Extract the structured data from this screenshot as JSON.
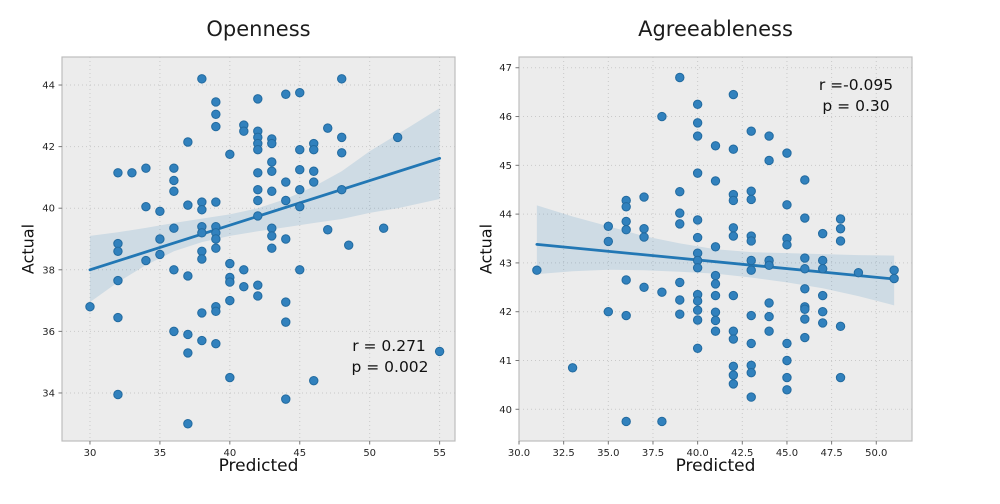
{
  "style": {
    "axes_background": "#ececec",
    "grid_color": "#c9c9c9",
    "frame_color": "#bdbdbd",
    "tick_color": "#777777",
    "tick_label_color": "#262626",
    "point_fill": "#3181bd",
    "point_edge": "#226a9f",
    "line_color": "#2277b4",
    "band_fill": "rgba(49,130,189,0.16)"
  },
  "chart_data": [
    {
      "type": "scatter",
      "title": "Openness",
      "xlabel": "Predicted",
      "ylabel": "Actual",
      "xlim": [
        28.0,
        56.1
      ],
      "ylim": [
        32.44,
        44.91
      ],
      "grid": true,
      "xticks": {
        "values": [
          30,
          35,
          40,
          45,
          50,
          55
        ],
        "labels": [
          "30",
          "35",
          "40",
          "45",
          "50",
          "55"
        ]
      },
      "yticks": {
        "values": [
          34,
          36,
          38,
          40,
          42,
          44
        ],
        "labels": [
          "34",
          "36",
          "38",
          "40",
          "42",
          "44"
        ]
      },
      "regression_line": {
        "x1": 30,
        "y1": 38.0,
        "x2": 55,
        "y2": 41.62
      },
      "confidence_band": {
        "x": [
          30,
          32,
          34,
          36,
          38,
          40,
          42,
          44,
          46,
          48,
          50,
          52,
          55
        ],
        "upper": [
          39.1,
          39.22,
          39.36,
          39.52,
          39.66,
          39.8,
          40.0,
          40.3,
          40.7,
          41.2,
          41.85,
          42.4,
          43.25
        ],
        "lower": [
          36.95,
          37.6,
          38.15,
          38.6,
          38.9,
          39.1,
          39.25,
          39.38,
          39.52,
          39.65,
          39.85,
          40.0,
          40.3
        ]
      },
      "annotations": [
        {
          "text": "r = 0.271",
          "x": 51.3,
          "y": 35.52
        },
        {
          "text": "p = 0.002",
          "x": 51.4,
          "y": 34.85
        }
      ],
      "points": [
        [
          30,
          36.8
        ],
        [
          32,
          41.15
        ],
        [
          32,
          38.85
        ],
        [
          32,
          38.6
        ],
        [
          32,
          37.65
        ],
        [
          32,
          36.45
        ],
        [
          32,
          33.95
        ],
        [
          33,
          41.15
        ],
        [
          34,
          41.3
        ],
        [
          34,
          40.05
        ],
        [
          34,
          38.3
        ],
        [
          35,
          39.9
        ],
        [
          35,
          39.0
        ],
        [
          35,
          38.5
        ],
        [
          36,
          41.3
        ],
        [
          36,
          40.9
        ],
        [
          36,
          40.55
        ],
        [
          36,
          39.35
        ],
        [
          36,
          38.0
        ],
        [
          36,
          36.0
        ],
        [
          37,
          42.15
        ],
        [
          37,
          40.1
        ],
        [
          37,
          37.8
        ],
        [
          37,
          35.9
        ],
        [
          37,
          35.3
        ],
        [
          37,
          33.0
        ],
        [
          38,
          44.2
        ],
        [
          38,
          40.2
        ],
        [
          38,
          39.95
        ],
        [
          38,
          39.4
        ],
        [
          38,
          39.2
        ],
        [
          38,
          38.6
        ],
        [
          38,
          38.35
        ],
        [
          38,
          36.6
        ],
        [
          38,
          35.7
        ],
        [
          39,
          43.45
        ],
        [
          39,
          43.05
        ],
        [
          39,
          42.65
        ],
        [
          39,
          40.2
        ],
        [
          39,
          39.4
        ],
        [
          39,
          39.2
        ],
        [
          39,
          39.0
        ],
        [
          39,
          38.7
        ],
        [
          39,
          36.8
        ],
        [
          39,
          36.65
        ],
        [
          39,
          35.6
        ],
        [
          40,
          41.75
        ],
        [
          40,
          38.2
        ],
        [
          40,
          37.75
        ],
        [
          40,
          37.6
        ],
        [
          40,
          37.0
        ],
        [
          40,
          34.5
        ],
        [
          41,
          42.7
        ],
        [
          41,
          42.5
        ],
        [
          41,
          38.0
        ],
        [
          41,
          37.45
        ],
        [
          42,
          43.55
        ],
        [
          42,
          42.5
        ],
        [
          42,
          42.3
        ],
        [
          42,
          42.1
        ],
        [
          42,
          41.9
        ],
        [
          42,
          41.15
        ],
        [
          42,
          40.6
        ],
        [
          42,
          40.25
        ],
        [
          42,
          39.75
        ],
        [
          42,
          37.5
        ],
        [
          42,
          37.15
        ],
        [
          43,
          42.25
        ],
        [
          43,
          42.1
        ],
        [
          43,
          41.5
        ],
        [
          43,
          41.2
        ],
        [
          43,
          40.55
        ],
        [
          43,
          39.35
        ],
        [
          43,
          39.1
        ],
        [
          43,
          38.7
        ],
        [
          44,
          43.7
        ],
        [
          44,
          40.85
        ],
        [
          44,
          40.25
        ],
        [
          44,
          39.0
        ],
        [
          44,
          36.95
        ],
        [
          44,
          36.3
        ],
        [
          44,
          33.8
        ],
        [
          45,
          43.75
        ],
        [
          45,
          41.9
        ],
        [
          45,
          41.25
        ],
        [
          45,
          40.6
        ],
        [
          45,
          40.05
        ],
        [
          45,
          38.0
        ],
        [
          46,
          42.1
        ],
        [
          46,
          41.9
        ],
        [
          46,
          41.2
        ],
        [
          46,
          40.85
        ],
        [
          46,
          34.4
        ],
        [
          47,
          42.6
        ],
        [
          47,
          39.3
        ],
        [
          48,
          44.2
        ],
        [
          48,
          42.3
        ],
        [
          48,
          41.8
        ],
        [
          48,
          40.6
        ],
        [
          48.5,
          38.8
        ],
        [
          51,
          39.35
        ],
        [
          52,
          42.3
        ],
        [
          55,
          35.35
        ]
      ]
    },
    {
      "type": "scatter",
      "title": "Agreeableness",
      "xlabel": "Predicted",
      "ylabel": "Actual",
      "xlim": [
        30.0,
        52.0
      ],
      "ylim": [
        39.35,
        47.22
      ],
      "grid": true,
      "xticks": {
        "values": [
          30,
          32.5,
          35,
          37.5,
          40,
          42.5,
          45,
          47.5,
          50
        ],
        "labels": [
          "30.0",
          "32.5",
          "35.0",
          "37.5",
          "40.0",
          "42.5",
          "45.0",
          "47.5",
          "50.0"
        ]
      },
      "yticks": {
        "values": [
          40,
          41,
          42,
          43,
          44,
          45,
          46,
          47
        ],
        "labels": [
          "40",
          "41",
          "42",
          "43",
          "44",
          "45",
          "46",
          "47"
        ]
      },
      "regression_line": {
        "x1": 31,
        "y1": 43.38,
        "x2": 51,
        "y2": 42.67
      },
      "confidence_band": {
        "x": [
          31,
          33,
          35,
          37,
          39,
          41,
          43,
          45,
          47,
          49,
          51
        ],
        "upper": [
          44.18,
          43.95,
          43.75,
          43.55,
          43.4,
          43.28,
          43.22,
          43.2,
          43.18,
          43.16,
          43.15
        ],
        "lower": [
          42.77,
          42.83,
          42.86,
          42.85,
          42.82,
          42.78,
          42.7,
          42.6,
          42.48,
          42.32,
          42.13
        ]
      },
      "annotations": [
        {
          "text": "r =-0.095",
          "x": 48.9,
          "y": 46.65
        },
        {
          "text": "p = 0.30",
          "x": 48.9,
          "y": 46.22
        }
      ],
      "points": [
        [
          31,
          42.85
        ],
        [
          33,
          40.85
        ],
        [
          35,
          43.75
        ],
        [
          35,
          43.44
        ],
        [
          35,
          42.0
        ],
        [
          36,
          44.28
        ],
        [
          36,
          44.15
        ],
        [
          36,
          43.85
        ],
        [
          36,
          43.68
        ],
        [
          36,
          42.65
        ],
        [
          36,
          41.92
        ],
        [
          36,
          39.75
        ],
        [
          37,
          44.35
        ],
        [
          37,
          43.7
        ],
        [
          37,
          43.53
        ],
        [
          37,
          42.5
        ],
        [
          38,
          46.0
        ],
        [
          38,
          42.4
        ],
        [
          38,
          39.75
        ],
        [
          39,
          46.8
        ],
        [
          39,
          44.46
        ],
        [
          39,
          44.02
        ],
        [
          39,
          43.8
        ],
        [
          39,
          42.6
        ],
        [
          39,
          42.24
        ],
        [
          39,
          41.95
        ],
        [
          40,
          46.25
        ],
        [
          40,
          45.87
        ],
        [
          40,
          45.6
        ],
        [
          40,
          44.84
        ],
        [
          40,
          43.88
        ],
        [
          40,
          43.52
        ],
        [
          40,
          43.2
        ],
        [
          40,
          43.05
        ],
        [
          40,
          42.9
        ],
        [
          40,
          42.35
        ],
        [
          40,
          42.22
        ],
        [
          40,
          42.03
        ],
        [
          40,
          41.83
        ],
        [
          40,
          41.25
        ],
        [
          41,
          45.4
        ],
        [
          41,
          44.68
        ],
        [
          41,
          43.33
        ],
        [
          41,
          42.74
        ],
        [
          41,
          42.57
        ],
        [
          41,
          42.33
        ],
        [
          41,
          41.99
        ],
        [
          41,
          41.82
        ],
        [
          41,
          41.6
        ],
        [
          42,
          46.45
        ],
        [
          42,
          45.33
        ],
        [
          42,
          44.4
        ],
        [
          42,
          44.28
        ],
        [
          42,
          43.72
        ],
        [
          42,
          43.55
        ],
        [
          42,
          42.33
        ],
        [
          42,
          41.6
        ],
        [
          42,
          41.44
        ],
        [
          42,
          40.88
        ],
        [
          42,
          40.7
        ],
        [
          42,
          40.52
        ],
        [
          43,
          45.7
        ],
        [
          43,
          44.47
        ],
        [
          43,
          44.3
        ],
        [
          43,
          43.55
        ],
        [
          43,
          43.45
        ],
        [
          43,
          43.05
        ],
        [
          43,
          42.85
        ],
        [
          43,
          41.92
        ],
        [
          43,
          41.35
        ],
        [
          43,
          40.9
        ],
        [
          43,
          40.75
        ],
        [
          43,
          40.25
        ],
        [
          44,
          45.6
        ],
        [
          44,
          45.1
        ],
        [
          44,
          43.05
        ],
        [
          44,
          42.95
        ],
        [
          44,
          42.18
        ],
        [
          44,
          41.9
        ],
        [
          44,
          41.6
        ],
        [
          45,
          45.25
        ],
        [
          45,
          44.19
        ],
        [
          45,
          43.5
        ],
        [
          45,
          43.37
        ],
        [
          45,
          41.35
        ],
        [
          45,
          41.0
        ],
        [
          45,
          40.65
        ],
        [
          45,
          40.4
        ],
        [
          46,
          44.7
        ],
        [
          46,
          43.92
        ],
        [
          46,
          43.1
        ],
        [
          46,
          42.88
        ],
        [
          46,
          42.47
        ],
        [
          46,
          42.1
        ],
        [
          46,
          42.05
        ],
        [
          46,
          41.85
        ],
        [
          46,
          41.47
        ],
        [
          47,
          43.6
        ],
        [
          47,
          43.05
        ],
        [
          47,
          42.88
        ],
        [
          47,
          42.33
        ],
        [
          47,
          42.0
        ],
        [
          47,
          41.77
        ],
        [
          48,
          43.9
        ],
        [
          48,
          43.7
        ],
        [
          48,
          43.45
        ],
        [
          48,
          41.7
        ],
        [
          48,
          40.65
        ],
        [
          49,
          42.8
        ],
        [
          51,
          42.85
        ],
        [
          51,
          42.68
        ]
      ]
    }
  ]
}
